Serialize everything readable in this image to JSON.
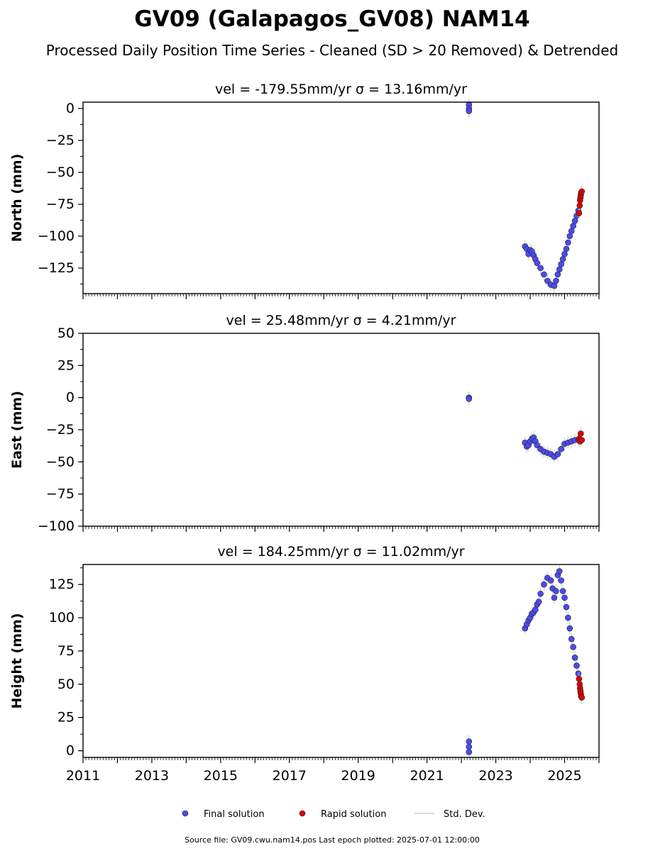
{
  "title": "GV09 (Galapagos_GV08) NAM14",
  "subtitle": "Processed Daily Position Time Series - Cleaned (SD > 20 Removed) & Detrended",
  "legend": {
    "final": "Final solution",
    "rapid": "Rapid solution",
    "std": "Std. Dev."
  },
  "footer": "Source file: GV09.cwu.nam14.pos  Last epoch plotted: 2025-07-01 12:00:00",
  "colors": {
    "final": "#4b4bf0",
    "rapid": "#e00000",
    "std": "#c8c8c8"
  },
  "chart_data": [
    {
      "type": "scatter",
      "component": "north",
      "title_vel": "vel = -179.55mm/yr",
      "title_sigma": "σ = 13.16mm/yr",
      "ylabel": "North (mm)",
      "xlim": [
        2011.0,
        2026.0
      ],
      "ylim": [
        -145,
        5
      ],
      "yticks": [
        0,
        -25,
        -50,
        -75,
        -100,
        -125
      ],
      "ytick_labels": [
        "0",
        "−25",
        "−50",
        "−75",
        "−100",
        "−125"
      ],
      "series": [
        {
          "name": "Final solution",
          "x": [
            2022.22,
            2022.22,
            2022.22,
            2023.85,
            2023.9,
            2023.95,
            2024.0,
            2024.05,
            2024.1,
            2024.15,
            2024.2,
            2024.3,
            2024.4,
            2024.5,
            2024.6,
            2024.7,
            2024.75,
            2024.8,
            2024.85,
            2024.9,
            2024.95,
            2025.0,
            2025.05,
            2025.1,
            2025.15,
            2025.2,
            2025.25,
            2025.3,
            2025.35,
            2025.4
          ],
          "y": [
            3,
            0,
            -2,
            -108,
            -110,
            -114,
            -111,
            -112,
            -115,
            -118,
            -121,
            -125,
            -130,
            -135,
            -138,
            -139,
            -135,
            -130,
            -126,
            -122,
            -118,
            -114,
            -110,
            -105,
            -100,
            -96,
            -92,
            -88,
            -84,
            -80
          ]
        },
        {
          "name": "Rapid solution",
          "x": [
            2025.42,
            2025.44,
            2025.45,
            2025.46,
            2025.47,
            2025.48,
            2025.5
          ],
          "y": [
            -82,
            -76,
            -72,
            -70,
            -68,
            -66,
            -65
          ]
        }
      ]
    },
    {
      "type": "scatter",
      "component": "east",
      "title_vel": "vel = 25.48mm/yr",
      "title_sigma": "σ = 4.21mm/yr",
      "ylabel": "East (mm)",
      "xlim": [
        2011.0,
        2026.0
      ],
      "ylim": [
        -100,
        50
      ],
      "yticks": [
        50,
        25,
        0,
        -25,
        -50,
        -75,
        -100
      ],
      "ytick_labels": [
        "50",
        "25",
        "0",
        "−25",
        "−50",
        "−75",
        "−100"
      ],
      "series": [
        {
          "name": "Final solution",
          "x": [
            2022.22,
            2022.22,
            2023.85,
            2023.9,
            2023.95,
            2024.0,
            2024.05,
            2024.1,
            2024.15,
            2024.2,
            2024.3,
            2024.4,
            2024.5,
            2024.6,
            2024.7,
            2024.8,
            2024.9,
            2025.0,
            2025.1,
            2025.2,
            2025.3,
            2025.4
          ],
          "y": [
            0,
            -1,
            -35,
            -38,
            -37,
            -34,
            -32,
            -31,
            -34,
            -37,
            -40,
            -42,
            -43,
            -44,
            -46,
            -44,
            -40,
            -36,
            -35,
            -34,
            -33,
            -33
          ]
        },
        {
          "name": "Rapid solution",
          "x": [
            2025.42,
            2025.45,
            2025.47,
            2025.5
          ],
          "y": [
            -32,
            -34,
            -28,
            -33
          ]
        }
      ]
    },
    {
      "type": "scatter",
      "component": "height",
      "title_vel": "vel = 184.25mm/yr",
      "title_sigma": "σ = 11.02mm/yr",
      "ylabel": "Height (mm)",
      "xlim": [
        2011.0,
        2026.0
      ],
      "ylim": [
        -5,
        140
      ],
      "yticks": [
        125,
        100,
        75,
        50,
        25,
        0
      ],
      "ytick_labels": [
        "125",
        "100",
        "75",
        "50",
        "25",
        "0"
      ],
      "xticks": [
        2011,
        2013,
        2015,
        2017,
        2019,
        2021,
        2023,
        2025
      ],
      "xtick_labels": [
        "2011",
        "2013",
        "2015",
        "2017",
        "2019",
        "2021",
        "2023",
        "2025"
      ],
      "series": [
        {
          "name": "Final solution",
          "x": [
            2022.22,
            2022.22,
            2022.22,
            2023.85,
            2023.9,
            2023.95,
            2024.0,
            2024.05,
            2024.1,
            2024.15,
            2024.2,
            2024.25,
            2024.3,
            2024.4,
            2024.5,
            2024.6,
            2024.65,
            2024.7,
            2024.75,
            2024.8,
            2024.85,
            2024.9,
            2024.95,
            2025.0,
            2025.05,
            2025.1,
            2025.15,
            2025.2,
            2025.25,
            2025.3,
            2025.35,
            2025.4
          ],
          "y": [
            7,
            3,
            -1,
            92,
            95,
            98,
            100,
            103,
            104,
            106,
            110,
            112,
            118,
            125,
            130,
            128,
            122,
            115,
            120,
            132,
            135,
            128,
            120,
            115,
            108,
            100,
            92,
            84,
            78,
            70,
            64,
            58
          ]
        },
        {
          "name": "Rapid solution",
          "x": [
            2025.42,
            2025.44,
            2025.45,
            2025.46,
            2025.47,
            2025.48,
            2025.5
          ],
          "y": [
            54,
            50,
            47,
            45,
            43,
            41,
            40
          ]
        }
      ]
    }
  ]
}
